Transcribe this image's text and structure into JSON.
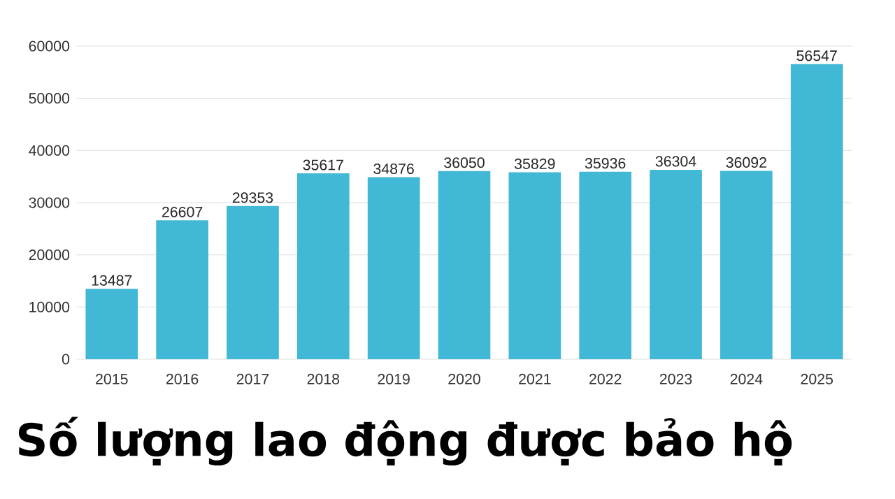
{
  "chart_data": {
    "type": "bar",
    "title": "Số lượng lao động được bảo hộ",
    "categories": [
      "2015",
      "2016",
      "2017",
      "2018",
      "2019",
      "2020",
      "2021",
      "2022",
      "2023",
      "2024",
      "2025"
    ],
    "values": [
      13487,
      26607,
      29353,
      35617,
      34876,
      36050,
      35829,
      35936,
      36304,
      36092,
      56547
    ],
    "color": "#41b8d5",
    "ylim": [
      0,
      60000
    ],
    "yticks": [
      0,
      10000,
      20000,
      30000,
      40000,
      50000,
      60000
    ],
    "grid": "y",
    "data_labels": true
  }
}
